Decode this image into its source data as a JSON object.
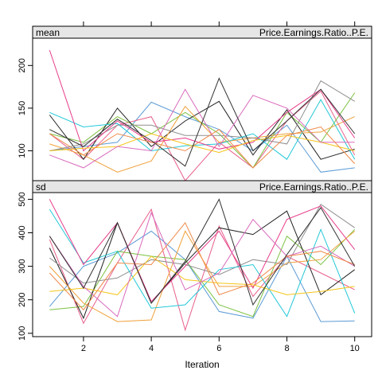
{
  "chart_data": {
    "type": "line",
    "xlabel": "Iteration",
    "x": [
      1,
      2,
      3,
      4,
      5,
      6,
      7,
      8,
      9,
      10
    ],
    "x_ticks": [
      2,
      4,
      6,
      8,
      10
    ],
    "xlim": [
      0.5,
      10.5
    ],
    "colors": [
      "#5b9bd5",
      "#e8608a",
      "#7dc242",
      "#222222",
      "#f0a03a",
      "#8f8f8f",
      "#22c8d8",
      "#e83c8a",
      "#f5c518",
      "#d96bbd",
      "#f08a4a",
      "#333333"
    ],
    "panels": [
      {
        "name": "mean",
        "variable": "Price.Earnings.Ratio..P.E.",
        "ylim": [
          65,
          232
        ],
        "y_ticks": [
          100,
          150,
          200
        ],
        "series": [
          {
            "values": [
              100,
              105,
              110,
              157,
              140,
              125,
              100,
              130,
              75,
              80
            ]
          },
          {
            "values": [
              120,
              90,
              130,
              140,
              65,
              110,
              80,
              135,
              170,
              95
            ]
          },
          {
            "values": [
              120,
              110,
              140,
              120,
              145,
              120,
              80,
              145,
              110,
              168
            ]
          },
          {
            "values": [
              142,
              90,
              150,
              105,
              135,
              158,
              95,
              148,
              90,
              102
            ]
          },
          {
            "values": [
              108,
              95,
              75,
              88,
              152,
              110,
              115,
              120,
              122,
              140
            ]
          },
          {
            "values": [
              100,
              108,
              130,
              130,
              118,
              118,
              115,
              108,
              182,
              158
            ]
          },
          {
            "values": [
              145,
              128,
              132,
              100,
              106,
              108,
              120,
              90,
              160,
              90
            ]
          },
          {
            "values": [
              218,
              100,
              135,
              110,
              115,
              102,
              110,
              145,
              172,
              115
            ]
          },
          {
            "values": [
              100,
              103,
              105,
              120,
              108,
              98,
              112,
              118,
              110,
              100
            ]
          },
          {
            "values": [
              95,
              80,
              105,
              100,
              172,
              105,
              165,
              150,
              110,
              110
            ]
          },
          {
            "values": [
              120,
              95,
              120,
              110,
              100,
              125,
              80,
              118,
              128,
              85
            ]
          },
          {
            "values": [
              125,
              105,
              137,
              112,
              82,
              185,
              100,
              135,
              172,
              120
            ]
          }
        ]
      },
      {
        "name": "sd",
        "variable": "Price.Earnings.Ratio..P.E.",
        "ylim": [
          90,
          520
        ],
        "y_ticks": [
          100,
          200,
          300,
          400,
          500
        ],
        "series": [
          {
            "values": [
              180,
              300,
              340,
              405,
              320,
              165,
              145,
              330,
              135,
              137
            ]
          },
          {
            "values": [
              380,
              130,
              310,
              470,
              110,
              420,
              210,
              330,
              280,
              230
            ]
          },
          {
            "values": [
              170,
              180,
              345,
              330,
              320,
              185,
              150,
              390,
              305,
              410
            ]
          },
          {
            "values": [
              355,
              145,
              430,
              190,
              310,
              415,
              395,
              465,
              215,
              290
            ]
          },
          {
            "values": [
              300,
              190,
              135,
              140,
              405,
              240,
              240,
              310,
              320,
              405
            ]
          },
          {
            "values": [
              325,
              250,
              265,
              320,
              305,
              275,
              320,
              305,
              485,
              415
            ]
          },
          {
            "values": [
              470,
              310,
              345,
              175,
              185,
              290,
              305,
              150,
              410,
              160
            ]
          },
          {
            "values": [
              500,
              305,
              430,
              195,
              300,
              405,
              235,
              440,
              480,
              350
            ]
          },
          {
            "values": [
              225,
              235,
              215,
              330,
              260,
              250,
              245,
              215,
              225,
              240
            ]
          },
          {
            "values": [
              390,
              240,
              150,
              460,
              230,
              280,
              440,
              330,
              360,
              300
            ]
          },
          {
            "values": [
              280,
              170,
              310,
              305,
              430,
              215,
              250,
              330,
              345,
              305
            ]
          },
          {
            "values": [
              390,
              235,
              430,
              190,
              315,
              500,
              185,
              335,
              475,
              300
            ]
          }
        ]
      }
    ]
  }
}
